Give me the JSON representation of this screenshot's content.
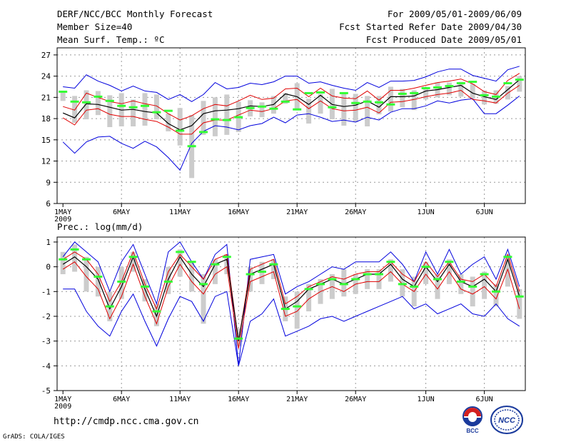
{
  "header": {
    "title": "DERF/NCC/BCC Monthly Forecast",
    "member_size": "Member Size=40",
    "variable": "Mean Surf. Temp.: ºC",
    "period": "For 2009/05/01-2009/06/09",
    "refer_date": "Fcst Started Refer Date 2009/04/30",
    "produced_date": "Fcst Produced Date 2009/05/01"
  },
  "precip_label": "Prec.: log(mm/d)",
  "url": "http://cmdp.ncc.cma.gov.cn",
  "grads_credit": "GrADS: COLA/IGES",
  "logos": {
    "bcc": "BCC",
    "ncc": "NCC"
  },
  "colors": {
    "frame": "#000000",
    "grid": "#999999",
    "ensemble_bar": "#cccccc",
    "mean_line": "#000000",
    "spread_line": "#e00000",
    "extreme_line": "#0000dd",
    "observed": "#33ff33"
  },
  "chart_data": [
    {
      "type": "line",
      "title": "Mean Surf. Temp.: ºC",
      "x_labels": [
        {
          "day": 1,
          "label": "1MAY",
          "sub": "2009"
        },
        {
          "day": 6,
          "label": "6MAY"
        },
        {
          "day": 11,
          "label": "11MAY"
        },
        {
          "day": 16,
          "label": "16MAY"
        },
        {
          "day": 21,
          "label": "21MAY"
        },
        {
          "day": 26,
          "label": "26MAY"
        },
        {
          "day": 32,
          "label": "1JUN"
        },
        {
          "day": 37,
          "label": "6JUN"
        }
      ],
      "xlim": [
        0.5,
        40.5
      ],
      "ylim": [
        6,
        28
      ],
      "yticks": [
        6,
        9,
        12,
        15,
        18,
        21,
        24,
        27
      ],
      "days": [
        1,
        2,
        3,
        4,
        5,
        6,
        7,
        8,
        9,
        10,
        11,
        12,
        13,
        14,
        15,
        16,
        17,
        18,
        19,
        20,
        21,
        22,
        23,
        24,
        25,
        26,
        27,
        28,
        29,
        30,
        31,
        32,
        33,
        34,
        35,
        36,
        37,
        38,
        39,
        40
      ],
      "ensemble_max": [
        22.5,
        22.3,
        24.2,
        23.3,
        22.7,
        21.9,
        22.6,
        21.9,
        21.7,
        20.7,
        21.4,
        20.4,
        21.4,
        23.1,
        22.2,
        22.4,
        23.0,
        22.8,
        23.2,
        24.0,
        24.0,
        23.0,
        23.2,
        22.7,
        22.3,
        22.0,
        23.1,
        22.4,
        23.3,
        23.3,
        23.4,
        23.9,
        24.6,
        25.0,
        25.0,
        24.1,
        23.7,
        23.3,
        24.9,
        25.4
      ],
      "ensemble_min": [
        14.7,
        13.1,
        14.7,
        15.4,
        15.5,
        14.5,
        13.8,
        14.8,
        14.0,
        12.5,
        10.7,
        14.5,
        16.2,
        17.0,
        16.8,
        16.4,
        17.0,
        17.3,
        18.2,
        17.4,
        18.5,
        18.7,
        18.2,
        17.6,
        17.8,
        17.5,
        18.2,
        17.8,
        18.9,
        19.4,
        19.4,
        19.8,
        20.5,
        20.2,
        20.6,
        20.8,
        18.7,
        18.7,
        19.9,
        21.2
      ],
      "spread_upper": [
        19.7,
        19.2,
        21.6,
        21.0,
        20.4,
        20.1,
        20.5,
        20.1,
        19.8,
        18.7,
        17.8,
        18.4,
        19.4,
        20.0,
        19.8,
        20.5,
        21.3,
        20.7,
        20.9,
        22.2,
        22.3,
        21.1,
        22.3,
        21.2,
        20.9,
        20.8,
        21.9,
        20.6,
        22.0,
        22.0,
        22.3,
        22.7,
        23.1,
        23.3,
        23.6,
        22.9,
        21.8,
        21.4,
        23.4,
        24.4
      ],
      "mean": [
        18.8,
        18.1,
        20.1,
        20.0,
        19.6,
        19.2,
        19.3,
        19.0,
        18.8,
        17.3,
        16.4,
        17.0,
        18.7,
        19.1,
        19.2,
        19.4,
        19.8,
        19.7,
        20.0,
        21.5,
        21.1,
        20.0,
        21.3,
        20.0,
        19.7,
        19.9,
        20.5,
        19.6,
        21.1,
        21.1,
        21.2,
        21.9,
        22.1,
        22.4,
        22.7,
        21.6,
        21.1,
        20.7,
        22.1,
        23.5
      ],
      "spread_lower": [
        18.1,
        17.1,
        19.2,
        19.4,
        18.6,
        18.3,
        18.3,
        17.9,
        17.6,
        16.8,
        15.8,
        15.8,
        17.4,
        17.8,
        17.8,
        18.5,
        19.2,
        19.0,
        19.4,
        20.5,
        20.7,
        19.4,
        20.5,
        19.4,
        19.1,
        19.2,
        19.6,
        18.8,
        20.3,
        20.4,
        20.7,
        21.1,
        21.4,
        21.6,
        22.0,
        20.7,
        20.5,
        20.2,
        21.6,
        22.7
      ],
      "bar_top": [
        21.9,
        21.2,
        22.0,
        21.9,
        21.3,
        21.6,
        20.7,
        21.6,
        21.4,
        18.7,
        19.5,
        18.5,
        20.5,
        21.0,
        21.4,
        20.4,
        20.6,
        20.3,
        21.2,
        21.6,
        23.0,
        20.8,
        21.5,
        22.2,
        21.7,
        21.5,
        21.2,
        21.2,
        22.5,
        22.2,
        22.0,
        22.3,
        23.1,
        23.1,
        23.2,
        22.9,
        22.0,
        22.0,
        22.6,
        24.0
      ],
      "bar_bottom": [
        20.5,
        17.4,
        17.9,
        18.5,
        16.8,
        16.9,
        16.9,
        17.0,
        17.9,
        16.2,
        14.2,
        9.6,
        15.7,
        15.5,
        15.7,
        16.1,
        18.3,
        18.2,
        18.7,
        20.1,
        19.4,
        17.3,
        18.7,
        17.9,
        17.0,
        17.5,
        16.9,
        18.6,
        19.0,
        19.6,
        19.2,
        20.7,
        21.0,
        21.3,
        21.1,
        20.8,
        20.0,
        20.1,
        20.7,
        21.8
      ],
      "observed": [
        21.8,
        20.4,
        20.3,
        21.1,
        20.5,
        19.8,
        19.6,
        19.8,
        18.9,
        19.1,
        16.3,
        14.1,
        16.1,
        17.9,
        17.8,
        18.2,
        19.5,
        19.7,
        19.4,
        20.4,
        19.3,
        21.6,
        21.7,
        19.6,
        21.6,
        20.2,
        20.4,
        20.3,
        20.0,
        21.5,
        21.6,
        22.3,
        22.4,
        22.6,
        23.0,
        23.2,
        21.3,
        21.1,
        23.0,
        23.5
      ]
    },
    {
      "type": "line",
      "title": "Prec.: log(mm/d)",
      "x_labels": [
        {
          "day": 1,
          "label": "1MAY",
          "sub": "2009"
        },
        {
          "day": 6,
          "label": "6MAY"
        },
        {
          "day": 11,
          "label": "11MAY"
        },
        {
          "day": 16,
          "label": "16MAY"
        },
        {
          "day": 21,
          "label": "21MAY"
        },
        {
          "day": 26,
          "label": "26MAY"
        },
        {
          "day": 32,
          "label": "1JUN"
        },
        {
          "day": 37,
          "label": "6JUN"
        }
      ],
      "xlim": [
        0.5,
        40.5
      ],
      "ylim": [
        -5,
        1.2
      ],
      "yticks": [
        -5,
        -4,
        -3,
        -2,
        -1,
        0,
        1
      ],
      "days": [
        1,
        2,
        3,
        4,
        5,
        6,
        7,
        8,
        9,
        10,
        11,
        12,
        13,
        14,
        15,
        16,
        17,
        18,
        19,
        20,
        21,
        22,
        23,
        24,
        25,
        26,
        27,
        28,
        29,
        30,
        31,
        32,
        33,
        34,
        35,
        36,
        37,
        38,
        39,
        40
      ],
      "ensemble_max": [
        0.4,
        1.0,
        0.6,
        0.2,
        -1.0,
        0.2,
        0.9,
        -0.3,
        -1.5,
        0.6,
        1.0,
        0.2,
        -0.5,
        0.5,
        0.9,
        -4.0,
        0.3,
        0.4,
        0.5,
        -1.1,
        -0.8,
        -0.6,
        -0.3,
        0.0,
        -0.1,
        0.2,
        0.2,
        0.2,
        0.6,
        0.1,
        -0.6,
        0.6,
        -0.3,
        0.7,
        -0.3,
        0.1,
        0.4,
        -0.5,
        0.7,
        -0.8
      ],
      "ensemble_min": [
        -0.9,
        -0.9,
        -1.8,
        -2.4,
        -2.8,
        -1.8,
        -1.1,
        -2.2,
        -3.2,
        -2.1,
        -1.2,
        -1.4,
        -2.2,
        -1.2,
        -1.0,
        -4.0,
        -2.2,
        -1.9,
        -1.3,
        -2.8,
        -2.6,
        -2.4,
        -2.1,
        -2.0,
        -2.2,
        -2.0,
        -1.8,
        -1.6,
        -1.4,
        -1.2,
        -1.7,
        -1.5,
        -1.9,
        -1.7,
        -1.5,
        -1.9,
        -2.0,
        -1.5,
        -2.1,
        -2.4
      ],
      "spread_upper": [
        0.3,
        0.6,
        0.3,
        -0.3,
        -1.4,
        -0.6,
        0.6,
        -0.7,
        -1.7,
        -0.2,
        0.5,
        0.0,
        -0.5,
        0.3,
        0.5,
        -3.0,
        -0.1,
        0.1,
        0.3,
        -1.5,
        -1.2,
        -0.8,
        -0.6,
        -0.4,
        -0.5,
        -0.3,
        -0.2,
        -0.2,
        0.2,
        -0.3,
        -0.6,
        0.2,
        -0.4,
        0.2,
        -0.5,
        -0.6,
        -0.3,
        -0.8,
        0.5,
        -1.0
      ],
      "mean": [
        0.1,
        0.4,
        0.0,
        -0.5,
        -1.7,
        -0.8,
        0.4,
        -0.9,
        -2.0,
        -0.5,
        0.4,
        -0.3,
        -0.8,
        0.1,
        0.3,
        -3.0,
        -0.3,
        -0.1,
        0.1,
        -1.7,
        -1.4,
        -0.9,
        -0.7,
        -0.5,
        -0.7,
        -0.5,
        -0.3,
        -0.3,
        0.1,
        -0.5,
        -0.8,
        0.0,
        -0.6,
        0.1,
        -0.6,
        -0.8,
        -0.5,
        -1.0,
        0.3,
        -1.2
      ],
      "spread_lower": [
        -0.1,
        0.2,
        -0.4,
        -0.9,
        -2.1,
        -1.2,
        0.1,
        -1.2,
        -2.3,
        -0.8,
        0.1,
        -0.6,
        -1.1,
        -0.3,
        0.0,
        -3.3,
        -0.6,
        -0.4,
        -0.2,
        -2.0,
        -1.8,
        -1.3,
        -1.0,
        -0.8,
        -1.0,
        -0.7,
        -0.6,
        -0.6,
        -0.2,
        -0.7,
        -1.0,
        -0.3,
        -0.9,
        -0.2,
        -0.9,
        -1.1,
        -0.8,
        -1.3,
        -0.1,
        -1.7
      ],
      "bar_top": [
        0.6,
        0.9,
        0.4,
        0.0,
        -1.0,
        0.0,
        0.6,
        -0.5,
        -1.5,
        0.0,
        0.7,
        0.2,
        -0.3,
        0.3,
        0.5,
        -2.5,
        0.0,
        0.2,
        0.3,
        -1.2,
        -1.0,
        -0.7,
        -0.5,
        -0.3,
        -0.1,
        -0.3,
        -0.1,
        -0.1,
        0.3,
        -0.1,
        -0.4,
        0.2,
        -0.3,
        0.3,
        -0.3,
        -0.4,
        -0.2,
        -0.7,
        0.5,
        -0.9
      ],
      "bar_bottom": [
        -0.3,
        -0.2,
        -1.0,
        -1.2,
        -2.2,
        -1.3,
        -0.2,
        -1.4,
        -2.4,
        -1.1,
        -0.4,
        -1.0,
        -2.3,
        -0.7,
        -0.3,
        -3.2,
        -1.0,
        -0.7,
        -0.5,
        -2.2,
        -2.5,
        -1.8,
        -1.5,
        -1.3,
        -1.2,
        -1.1,
        -0.9,
        -0.9,
        -0.6,
        -1.2,
        -1.6,
        -0.7,
        -1.3,
        -0.7,
        -1.1,
        -1.6,
        -1.3,
        -1.6,
        -0.8,
        -2.1
      ],
      "observed": [
        0.3,
        0.7,
        0.3,
        -0.4,
        -1.6,
        -0.6,
        0.4,
        -0.8,
        -1.8,
        -0.6,
        0.6,
        0.2,
        -0.7,
        0.1,
        0.4,
        -2.9,
        -0.3,
        -0.2,
        0.1,
        -1.7,
        -1.6,
        -0.9,
        -0.7,
        -0.5,
        -0.7,
        -0.5,
        -0.3,
        -0.3,
        0.2,
        -0.7,
        -0.8,
        0.0,
        -0.5,
        0.2,
        -0.6,
        -0.8,
        -0.3,
        -1.0,
        0.4,
        -1.2
      ]
    }
  ]
}
